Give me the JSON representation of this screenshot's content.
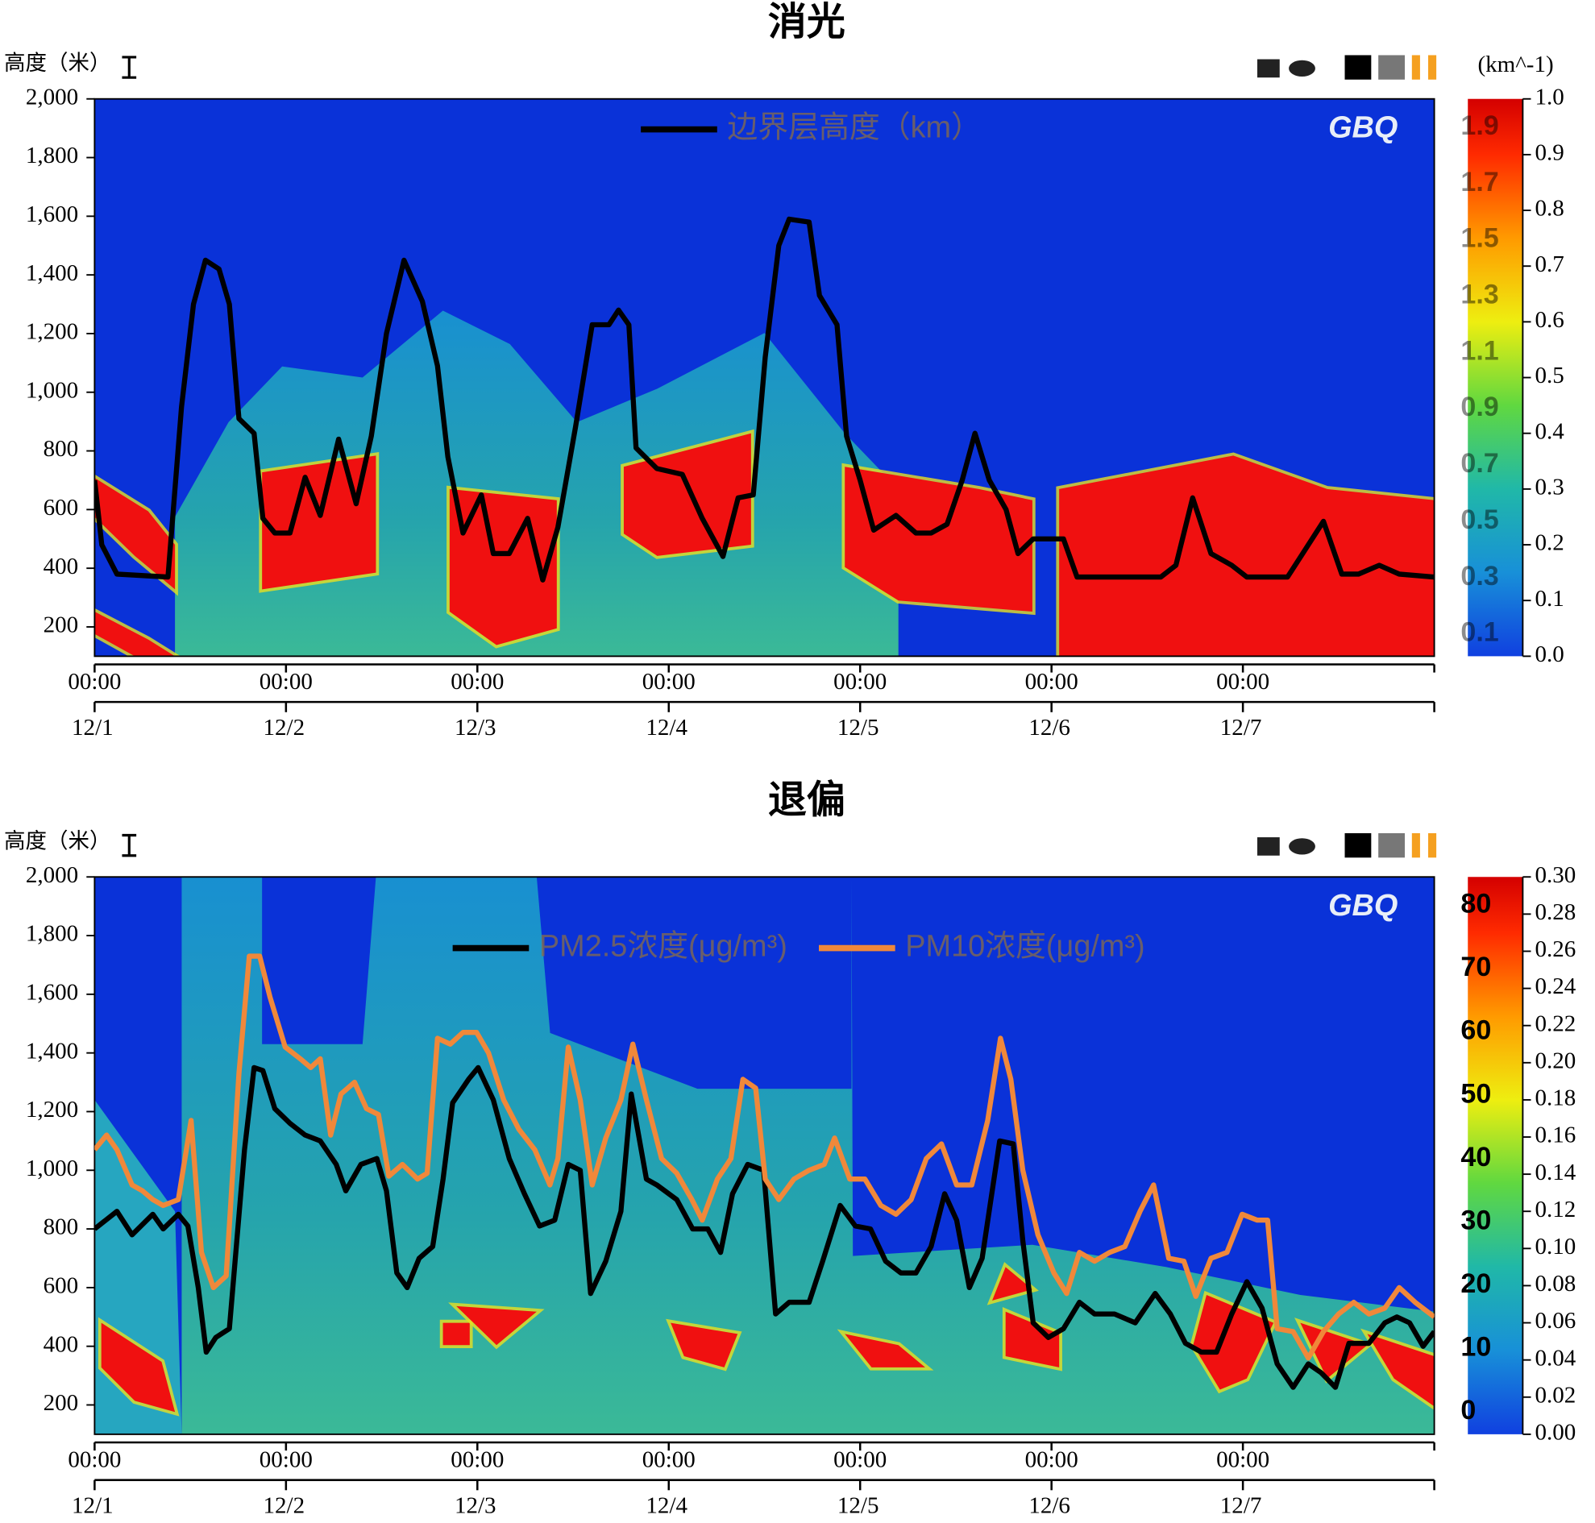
{
  "chart_data": [
    {
      "type": "line",
      "title": "消光",
      "y_label": "高度（米）",
      "watermark": "GBQ",
      "ylim": [
        100,
        2000
      ],
      "yticks": [
        200,
        400,
        600,
        800,
        {
          "value": 1000,
          "label": "1,000"
        },
        {
          "value": 1200,
          "label": "1,200"
        },
        {
          "value": 1400,
          "label": "1,400"
        },
        {
          "value": 1600,
          "label": "1,600"
        },
        {
          "value": 1800,
          "label": "1,800"
        },
        {
          "value": 2000,
          "label": "2,000"
        }
      ],
      "xlim": [
        0,
        168
      ],
      "xticks": [
        {
          "value": 0,
          "label": "00:00"
        },
        {
          "value": 24,
          "label": "00:00"
        },
        {
          "value": 48,
          "label": "00:00"
        },
        {
          "value": 72,
          "label": "00:00"
        },
        {
          "value": 96,
          "label": "00:00"
        },
        {
          "value": 120,
          "label": "00:00"
        },
        {
          "value": 144,
          "label": "00:00"
        }
      ],
      "date_ticks": [
        {
          "value": 0,
          "label": "12/1"
        },
        {
          "value": 24,
          "label": "12/2"
        },
        {
          "value": 48,
          "label": "12/3"
        },
        {
          "value": 72,
          "label": "12/4"
        },
        {
          "value": 96,
          "label": "12/5"
        },
        {
          "value": 120,
          "label": "12/6"
        },
        {
          "value": 144,
          "label": "12/7"
        }
      ],
      "series": [
        {
          "name": "边界层高度（km）",
          "color": "#000000",
          "x": [
            0,
            0.9,
            2.8,
            9.2,
            10.9,
            12.4,
            13.9,
            15.6,
            16.9,
            18.1,
            20.0,
            21.1,
            22.6,
            24.5,
            26.4,
            28.3,
            30.6,
            32.8,
            34.7,
            36.6,
            38.8,
            41.1,
            43.0,
            44.3,
            46.2,
            48.5,
            50.0,
            52.0,
            54.3,
            56.2,
            58.1,
            60.3,
            62.4,
            64.5,
            65.7,
            67.0,
            67.9,
            70.5,
            73.7,
            76.2,
            78.8,
            80.7,
            82.6,
            84.1,
            85.8,
            87.1,
            89.6,
            90.9,
            93.1,
            94.3,
            96.0,
            97.7,
            100.5,
            103.0,
            104.9,
            106.9,
            108.8,
            110.4,
            112.2,
            114.3,
            115.8,
            117.7,
            121.5,
            123.2,
            133.7,
            135.6,
            137.7,
            140.0,
            142.6,
            144.5,
            149.6,
            151.5,
            154.1,
            156.4,
            158.5,
            161.1,
            163.6,
            168
          ],
          "values": [
            700,
            480,
            380,
            370,
            950,
            1300,
            1450,
            1420,
            1300,
            910,
            860,
            570,
            520,
            520,
            710,
            580,
            840,
            620,
            850,
            1200,
            1450,
            1310,
            1090,
            780,
            520,
            650,
            450,
            450,
            570,
            360,
            540,
            880,
            1230,
            1230,
            1280,
            1230,
            810,
            740,
            720,
            570,
            440,
            640,
            650,
            1120,
            1500,
            1590,
            1580,
            1330,
            1230,
            850,
            700,
            530,
            580,
            520,
            520,
            550,
            700,
            860,
            700,
            600,
            450,
            500,
            500,
            370,
            370,
            410,
            640,
            450,
            410,
            370,
            370,
            450,
            560,
            380,
            380,
            410,
            380,
            370
          ]
        }
      ],
      "colorbar": {
        "label": "(km^-1)",
        "lim": [
          0,
          1
        ],
        "ticks": [
          {
            "value": 0,
            "label": "0.0"
          },
          {
            "value": 0.1,
            "label": "0.1"
          },
          {
            "value": 0.2,
            "label": "0.2"
          },
          {
            "value": 0.3,
            "label": "0.3"
          },
          {
            "value": 0.4,
            "label": "0.4"
          },
          {
            "value": 0.5,
            "label": "0.5"
          },
          {
            "value": 0.6,
            "label": "0.6"
          },
          {
            "value": 0.7,
            "label": "0.7"
          },
          {
            "value": 0.8,
            "label": "0.8"
          },
          {
            "value": 0.9,
            "label": "0.9"
          },
          {
            "value": 1,
            "label": "1.0"
          }
        ],
        "inner_labels": [
          "1.9",
          "1.7",
          "1.5",
          "1.3",
          "1.1",
          "0.9",
          "0.7",
          "0.5",
          "0.3",
          "0.1"
        ]
      }
    },
    {
      "type": "line",
      "title": "退偏",
      "y_label": "高度（米）",
      "watermark": "GBQ",
      "ylim": [
        100,
        2000
      ],
      "yticks": [
        200,
        400,
        600,
        800,
        {
          "value": 1000,
          "label": "1,000"
        },
        {
          "value": 1200,
          "label": "1,200"
        },
        {
          "value": 1400,
          "label": "1,400"
        },
        {
          "value": 1600,
          "label": "1,600"
        },
        {
          "value": 1800,
          "label": "1,800"
        },
        {
          "value": 2000,
          "label": "2,000"
        }
      ],
      "xlim": [
        0,
        168
      ],
      "xticks": [
        {
          "value": 0,
          "label": "00:00"
        },
        {
          "value": 24,
          "label": "00:00"
        },
        {
          "value": 48,
          "label": "00:00"
        },
        {
          "value": 72,
          "label": "00:00"
        },
        {
          "value": 96,
          "label": "00:00"
        },
        {
          "value": 120,
          "label": "00:00"
        },
        {
          "value": 144,
          "label": "00:00"
        }
      ],
      "date_ticks": [
        {
          "value": 0,
          "label": "12/1"
        },
        {
          "value": 24,
          "label": "12/2"
        },
        {
          "value": 48,
          "label": "12/3"
        },
        {
          "value": 72,
          "label": "12/4"
        },
        {
          "value": 96,
          "label": "12/5"
        },
        {
          "value": 120,
          "label": "12/6"
        },
        {
          "value": 144,
          "label": "12/7"
        }
      ],
      "series": [
        {
          "name": "PM2.5浓度(μg/m³)",
          "color": "#000000",
          "x": [
            0,
            2.8,
            4.7,
            7.3,
            8.6,
            10.5,
            11.7,
            13.0,
            14.0,
            15.2,
            16.9,
            18.8,
            20.0,
            21.1,
            22.6,
            24.5,
            26.4,
            28.3,
            30.3,
            31.5,
            33.4,
            35.4,
            36.6,
            37.9,
            39.2,
            40.7,
            42.4,
            43.7,
            44.9,
            46.9,
            48.1,
            50.0,
            52.0,
            53.9,
            55.8,
            57.7,
            59.4,
            60.9,
            62.2,
            64.1,
            66.0,
            67.3,
            69.2,
            70.5,
            73.0,
            75.0,
            76.9,
            78.5,
            80.0,
            81.9,
            83.9,
            85.4,
            87.1,
            89.6,
            91.3,
            93.5,
            95.4,
            97.3,
            99.2,
            101.1,
            103.0,
            104.9,
            106.6,
            108.1,
            109.7,
            111.3,
            113.5,
            115.2,
            116.4,
            117.7,
            119.6,
            121.5,
            123.5,
            125.4,
            127.9,
            130.5,
            133.0,
            134.9,
            136.8,
            138.8,
            140.7,
            142.6,
            144.5,
            146.4,
            148.3,
            150.3,
            152.2,
            153.8,
            155.6,
            157.3,
            159.8,
            161.8,
            163.3,
            164.9,
            166.6,
            168
          ],
          "values": [
            800,
            860,
            780,
            850,
            800,
            850,
            810,
            600,
            380,
            430,
            460,
            1070,
            1350,
            1340,
            1210,
            1160,
            1120,
            1100,
            1020,
            930,
            1020,
            1040,
            930,
            650,
            600,
            700,
            740,
            970,
            1230,
            1310,
            1350,
            1240,
            1040,
            920,
            810,
            830,
            1020,
            1000,
            580,
            690,
            860,
            1260,
            970,
            950,
            900,
            800,
            800,
            720,
            920,
            1020,
            1000,
            510,
            550,
            550,
            690,
            880,
            810,
            800,
            690,
            650,
            650,
            740,
            920,
            830,
            600,
            700,
            1100,
            1090,
            760,
            480,
            430,
            460,
            550,
            510,
            510,
            480,
            580,
            510,
            410,
            380,
            380,
            510,
            620,
            530,
            340,
            260,
            340,
            310,
            260,
            410,
            410,
            480,
            500,
            480,
            400,
            450
          ]
        },
        {
          "name": "PM10浓度(μg/m³)",
          "color": "#f0883a",
          "x": [
            0,
            1.5,
            2.8,
            4.7,
            6.0,
            7.3,
            8.6,
            10.5,
            12.1,
            13.4,
            14.9,
            16.5,
            18.1,
            19.4,
            20.7,
            22.0,
            23.9,
            25.8,
            27.1,
            28.3,
            29.6,
            30.9,
            32.6,
            34.1,
            35.6,
            36.9,
            38.6,
            40.5,
            41.7,
            43.0,
            44.6,
            46.2,
            47.9,
            49.4,
            51.3,
            53.2,
            55.2,
            57.1,
            58.1,
            59.4,
            60.9,
            62.4,
            64.1,
            66.0,
            67.5,
            69.2,
            71.1,
            73.0,
            74.9,
            76.2,
            78.1,
            79.8,
            81.3,
            82.9,
            84.1,
            85.8,
            87.7,
            89.6,
            91.5,
            92.8,
            94.7,
            96.6,
            98.6,
            100.5,
            102.4,
            104.3,
            106.2,
            108.1,
            110.0,
            112.0,
            113.6,
            114.9,
            116.4,
            118.3,
            120.3,
            121.9,
            123.5,
            125.4,
            127.3,
            129.2,
            131.1,
            132.8,
            134.7,
            136.6,
            138.1,
            140.0,
            142.0,
            143.9,
            145.8,
            147.1,
            148.3,
            150.3,
            152.2,
            154.1,
            156.0,
            157.9,
            159.8,
            161.8,
            163.6,
            165.6,
            168
          ],
          "values": [
            1070,
            1120,
            1070,
            950,
            930,
            900,
            880,
            900,
            1170,
            720,
            600,
            640,
            1330,
            1730,
            1730,
            1590,
            1420,
            1380,
            1350,
            1380,
            1120,
            1260,
            1300,
            1210,
            1190,
            980,
            1020,
            970,
            990,
            1450,
            1430,
            1470,
            1470,
            1400,
            1240,
            1140,
            1070,
            950,
            1040,
            1420,
            1240,
            950,
            1110,
            1240,
            1430,
            1240,
            1040,
            990,
            900,
            830,
            970,
            1040,
            1310,
            1280,
            970,
            900,
            970,
            1000,
            1020,
            1110,
            970,
            970,
            880,
            850,
            900,
            1040,
            1090,
            950,
            950,
            1170,
            1450,
            1310,
            1000,
            780,
            650,
            580,
            720,
            690,
            720,
            740,
            860,
            950,
            700,
            690,
            570,
            700,
            720,
            850,
            830,
            830,
            460,
            450,
            360,
            450,
            510,
            550,
            510,
            530,
            600,
            550,
            500
          ]
        }
      ],
      "colorbar": {
        "lim": [
          0,
          0.3
        ],
        "ticks": [
          {
            "value": 0,
            "label": "0.00"
          },
          {
            "value": 0.02,
            "label": "0.02"
          },
          {
            "value": 0.04,
            "label": "0.04"
          },
          {
            "value": 0.06,
            "label": "0.06"
          },
          {
            "value": 0.08,
            "label": "0.08"
          },
          {
            "value": 0.1,
            "label": "0.10"
          },
          {
            "value": 0.12,
            "label": "0.12"
          },
          {
            "value": 0.14,
            "label": "0.14"
          },
          {
            "value": 0.16,
            "label": "0.16"
          },
          {
            "value": 0.18,
            "label": "0.18"
          },
          {
            "value": 0.2,
            "label": "0.20"
          },
          {
            "value": 0.22,
            "label": "0.22"
          },
          {
            "value": 0.24,
            "label": "0.24"
          },
          {
            "value": 0.26,
            "label": "0.26"
          },
          {
            "value": 0.28,
            "label": "0.28"
          },
          {
            "value": 0.3,
            "label": "0.30"
          }
        ],
        "inner_labels": [
          80,
          70,
          60,
          50,
          40,
          30,
          20,
          10,
          0
        ]
      }
    }
  ]
}
